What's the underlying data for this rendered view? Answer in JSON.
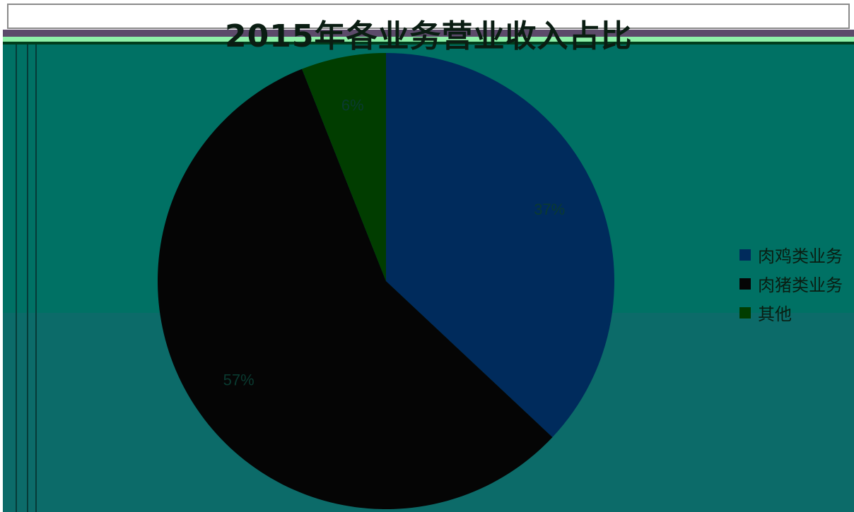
{
  "chart_data": {
    "type": "pie",
    "title": "2015年各业务营业收入占比",
    "categories": [
      "肉鸡类业务",
      "肉猪类业务",
      "其他"
    ],
    "values": [
      37,
      57,
      6
    ],
    "data_labels": [
      "37%",
      "57%",
      "6%"
    ],
    "legend_position": "right",
    "colors": {
      "肉鸡类业务": "#002b5c",
      "肉猪类业务": "#050505",
      "其他": "#013d00"
    }
  }
}
